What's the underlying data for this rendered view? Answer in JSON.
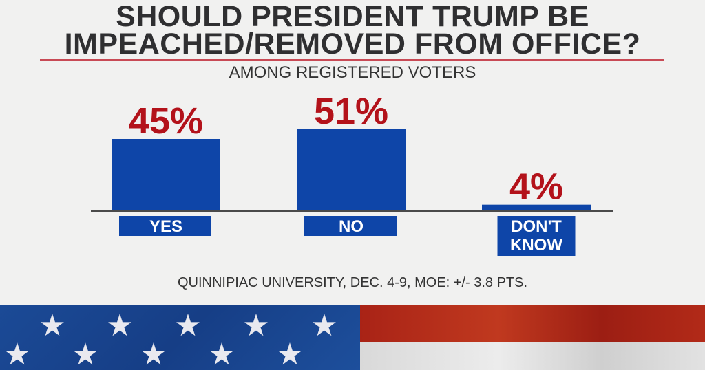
{
  "title_line1": "SHOULD PRESIDENT TRUMP BE",
  "title_line2": "IMPEACHED/REMOVED FROM OFFICE?",
  "subtitle": "AMONG REGISTERED VOTERS",
  "source": "QUINNIPIAC UNIVERSITY, DEC. 4-9, MOE: +/- 3.8 PTS.",
  "colors": {
    "bar": "#0e45a8",
    "value": "#b3121a",
    "label_box": "#0e45a8",
    "label_text": "#ffffff"
  },
  "chart_data": {
    "type": "bar",
    "title": "SHOULD PRESIDENT TRUMP BE IMPEACHED/REMOVED FROM OFFICE?",
    "subtitle": "AMONG REGISTERED VOTERS",
    "categories": [
      "YES",
      "NO",
      "DON'T KNOW"
    ],
    "category_lines": [
      [
        "YES"
      ],
      [
        "NO"
      ],
      [
        "DON'T",
        "KNOW"
      ]
    ],
    "values": [
      45,
      51,
      4
    ],
    "value_labels": [
      "45%",
      "51%",
      "4%"
    ],
    "unit": "%",
    "xlabel": "",
    "ylabel": "",
    "ylim": [
      0,
      51
    ],
    "grid": false,
    "legend": "none",
    "note": "QUINNIPIAC UNIVERSITY, DEC. 4-9, MOE: +/- 3.8 PTS."
  },
  "flag": {
    "stars": [
      "star-icon",
      "star-icon",
      "star-icon",
      "star-icon",
      "star-icon",
      "star-icon",
      "star-icon",
      "star-icon",
      "star-icon",
      "star-icon"
    ]
  }
}
